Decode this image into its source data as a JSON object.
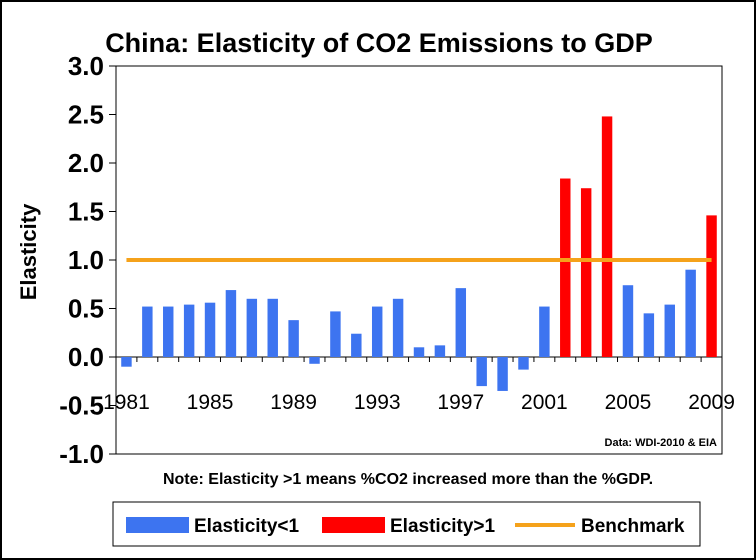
{
  "chart_data": {
    "type": "bar",
    "title": "China: Elasticity of CO2 Emissions to GDP",
    "xlabel": "",
    "ylabel": "Elasticity",
    "ylim": [
      -1.0,
      3.0
    ],
    "yticks": [
      "3.0",
      "2.5",
      "2.0",
      "1.5",
      "1.0",
      "0.5",
      "0.0",
      "-0.5",
      "-1.0"
    ],
    "xtick_labels": [
      "1981",
      "1985",
      "1989",
      "1993",
      "1997",
      "2001",
      "2005",
      "2009"
    ],
    "categories": [
      "1981",
      "1982",
      "1983",
      "1984",
      "1985",
      "1986",
      "1987",
      "1988",
      "1989",
      "1990",
      "1991",
      "1992",
      "1993",
      "1994",
      "1995",
      "1996",
      "1997",
      "1998",
      "1999",
      "2000",
      "2001",
      "2002",
      "2003",
      "2004",
      "2005",
      "2006",
      "2007",
      "2008",
      "2009"
    ],
    "values": [
      -0.1,
      0.52,
      0.52,
      0.54,
      0.56,
      0.69,
      0.6,
      0.6,
      0.38,
      -0.07,
      0.47,
      0.24,
      0.52,
      0.6,
      0.1,
      0.12,
      0.71,
      -0.3,
      -0.35,
      -0.13,
      0.52,
      1.84,
      1.74,
      2.48,
      0.74,
      0.45,
      0.54,
      0.9,
      1.46
    ],
    "threshold": 1.0,
    "colors": {
      "below": "#3d74f0",
      "above": "#ff0000",
      "benchmark": "#f5a21b"
    },
    "source_note": "Data: WDI-2010 & EIA",
    "annotation": "Note: Elasticity >1 means %CO2 increased more than the %GDP.",
    "legend": [
      "Elasticity<1",
      "Elasticity>1",
      "Benchmark"
    ]
  }
}
